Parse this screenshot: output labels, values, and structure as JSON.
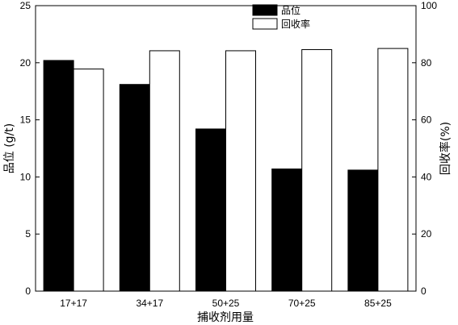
{
  "chart_data": {
    "type": "bar",
    "categories": [
      "17+17",
      "34+17",
      "50+25",
      "70+25",
      "85+25"
    ],
    "series": [
      {
        "name": "品位",
        "axis": "left",
        "fill": "#000000",
        "values": [
          20.2,
          18.1,
          14.2,
          10.7,
          10.6
        ]
      },
      {
        "name": "回收率",
        "axis": "right",
        "fill": "#ffffff",
        "values": [
          77.8,
          84.2,
          84.2,
          84.6,
          85.0
        ]
      }
    ],
    "xlabel": "捕收剂用量",
    "ylabel": "品位 (g/t)",
    "ylabel_right": "回收率(%)",
    "ylim": [
      0,
      25
    ],
    "ylim_right": [
      0,
      100
    ],
    "yticks": [
      "0",
      "5",
      "10",
      "15",
      "20",
      "25"
    ],
    "yticks_right": [
      "0",
      "20",
      "40",
      "60",
      "80",
      "100"
    ],
    "legend_position": "top-center",
    "grid": false
  }
}
